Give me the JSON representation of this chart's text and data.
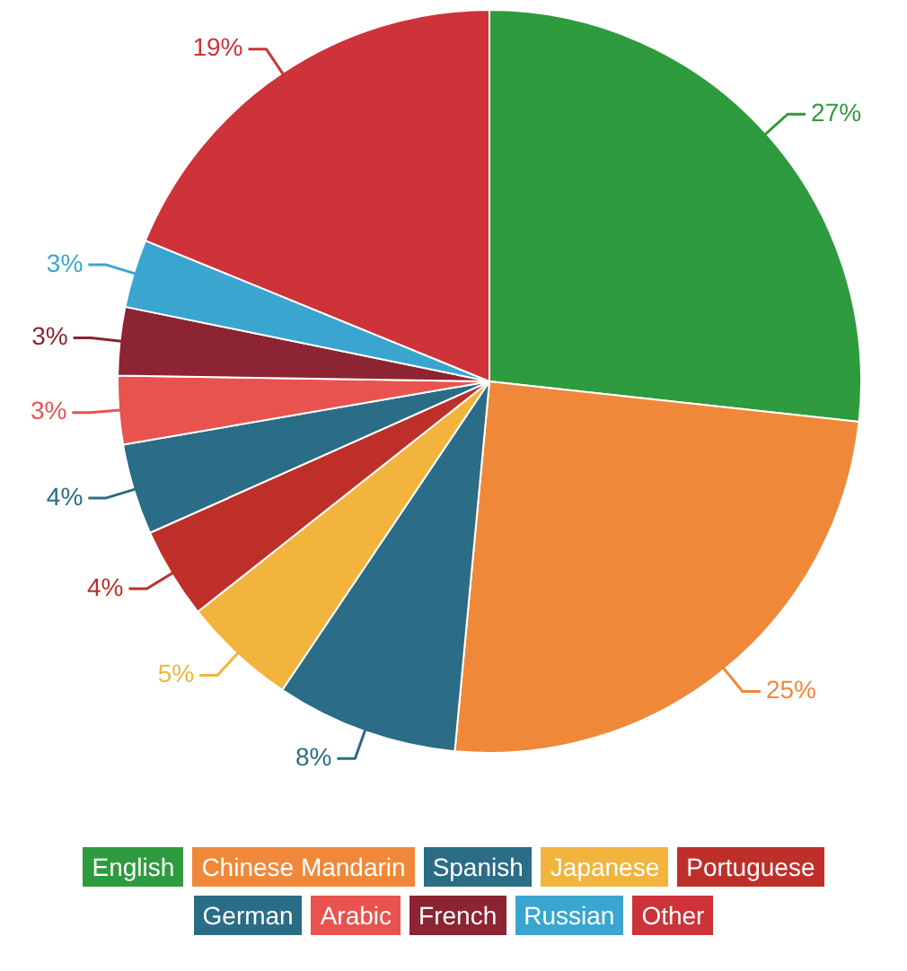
{
  "chart_data": {
    "type": "pie",
    "categories": [
      "English",
      "Chinese Mandarin",
      "Spanish",
      "Japanese",
      "Portuguese",
      "German",
      "Arabic",
      "French",
      "Russian",
      "Other"
    ],
    "values": [
      27,
      25,
      8,
      5,
      4,
      4,
      3,
      3,
      3,
      19
    ],
    "colors": [
      "#2e9b3e",
      "#f0883a",
      "#2b6c86",
      "#f2b43c",
      "#bf2f2a",
      "#2b6c86",
      "#e9534f",
      "#8c2433",
      "#3aa6cf",
      "#cd3339"
    ],
    "value_labels": [
      "27%",
      "25%",
      "8%",
      "5%",
      "4%",
      "4%",
      "3%",
      "3%",
      "3%",
      "19%"
    ],
    "legend": "bottom"
  }
}
